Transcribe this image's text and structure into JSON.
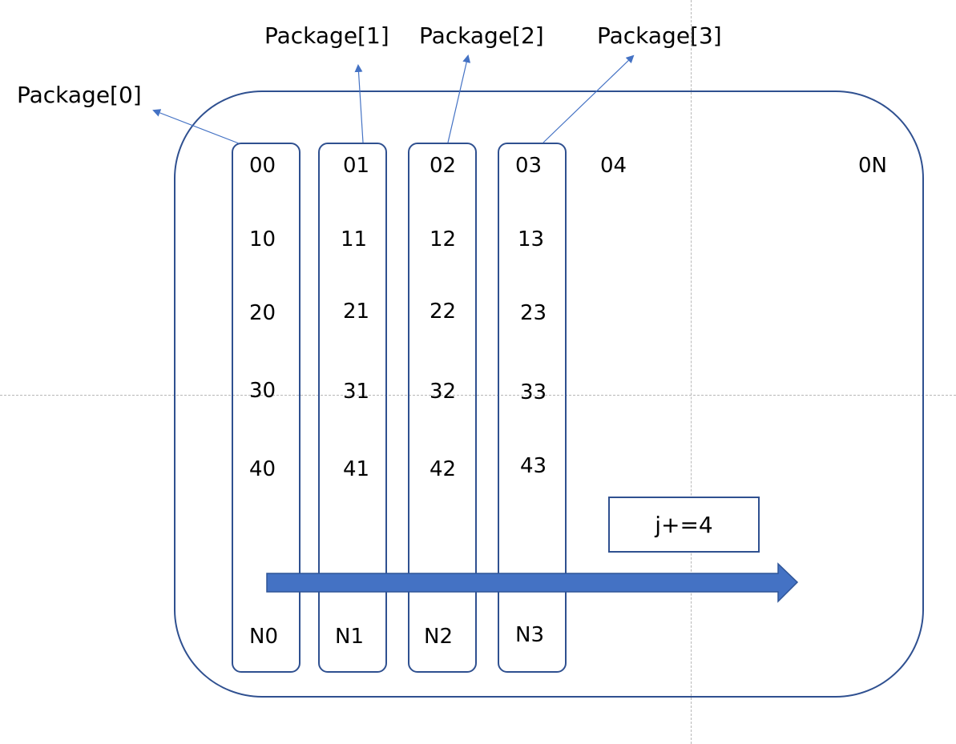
{
  "packages": [
    "Package[0]",
    "Package[1]",
    "Package[2]",
    "Package[3]"
  ],
  "columns": [
    {
      "cells": [
        "00",
        "10",
        "20",
        "30",
        "40"
      ],
      "last": "N0"
    },
    {
      "cells": [
        "01",
        "11",
        "21",
        "31",
        "41"
      ],
      "last": "N1"
    },
    {
      "cells": [
        "02",
        "12",
        "22",
        "32",
        "42"
      ],
      "last": "N2"
    },
    {
      "cells": [
        "03",
        "13",
        "23",
        "33",
        "43"
      ],
      "last": "N3"
    }
  ],
  "row0_extra": [
    "04",
    "0N"
  ],
  "step_label": "j+=4",
  "colors": {
    "stroke": "#2f5090",
    "arrow_fill": "#4472c4",
    "line": "#4472c4",
    "guide": "#b8b8b8"
  }
}
